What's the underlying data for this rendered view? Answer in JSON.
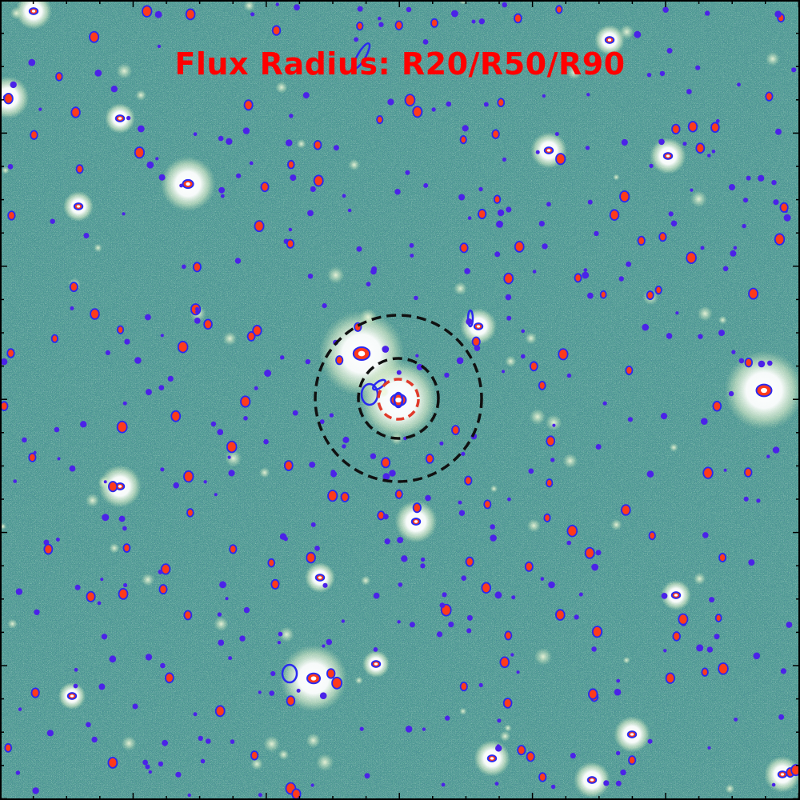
{
  "title": "Flux Radius: R20/R50/R90",
  "colors": {
    "background_field": "#4f9a93",
    "title": "#ff0000",
    "aperture_ellipse": "#2a2af0",
    "inner_core": "#ff3a1a",
    "radius_circles": "#000000",
    "r20_circle": "#e03a2a",
    "frame": "#000000"
  },
  "overlays": {
    "radius_circles": [
      "R20",
      "R50",
      "R90"
    ]
  }
}
